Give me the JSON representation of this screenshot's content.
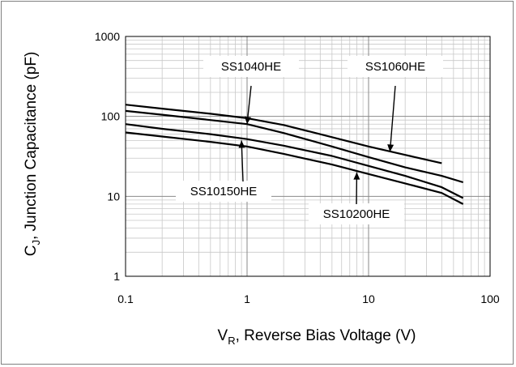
{
  "chart_data": {
    "type": "line",
    "xlabel": {
      "main": "V",
      "sub": "R",
      "rest": ", Reverse Bias Voltage (V)"
    },
    "ylabel": {
      "main": "C",
      "sub": "J",
      "rest": ", Junction Capacitance (pF)"
    },
    "x_scale": "log",
    "y_scale": "log",
    "xlim": [
      0.1,
      100
    ],
    "ylim": [
      1,
      1000
    ],
    "x_ticks": [
      "0.1",
      "1",
      "10",
      "100"
    ],
    "y_ticks": [
      "1",
      "10",
      "100",
      "1000"
    ],
    "grid": true,
    "series": [
      {
        "name": "SS1060HE",
        "points": [
          [
            0.1,
            140
          ],
          [
            0.2,
            125
          ],
          [
            0.5,
            108
          ],
          [
            1,
            95
          ],
          [
            2,
            78
          ],
          [
            5,
            55
          ],
          [
            10,
            42
          ],
          [
            20,
            33
          ],
          [
            40,
            26
          ]
        ]
      },
      {
        "name": "SS1040HE",
        "points": [
          [
            0.1,
            117
          ],
          [
            0.2,
            105
          ],
          [
            0.5,
            90
          ],
          [
            1,
            80
          ],
          [
            2,
            62
          ],
          [
            5,
            42
          ],
          [
            10,
            31
          ],
          [
            20,
            23
          ],
          [
            40,
            18
          ],
          [
            60,
            15
          ]
        ]
      },
      {
        "name": "SS10150HE",
        "points": [
          [
            0.1,
            80
          ],
          [
            0.2,
            70
          ],
          [
            0.5,
            60
          ],
          [
            1,
            52
          ],
          [
            2,
            43
          ],
          [
            5,
            32
          ],
          [
            10,
            24
          ],
          [
            20,
            18
          ],
          [
            40,
            13
          ],
          [
            60,
            9.5
          ]
        ]
      },
      {
        "name": "SS10200HE",
        "points": [
          [
            0.1,
            63
          ],
          [
            0.2,
            56
          ],
          [
            0.5,
            48
          ],
          [
            1,
            42
          ],
          [
            2,
            34
          ],
          [
            5,
            25
          ],
          [
            10,
            19
          ],
          [
            20,
            14.5
          ],
          [
            40,
            11
          ],
          [
            60,
            8
          ]
        ]
      }
    ],
    "annotations": [
      {
        "label": "SS1040HE",
        "arrow_to": [
          1,
          80
        ]
      },
      {
        "label": "SS1060HE",
        "arrow_to": [
          15,
          36
        ]
      },
      {
        "label": "SS10150HE",
        "arrow_to": [
          0.9,
          50
        ]
      },
      {
        "label": "SS10200HE",
        "arrow_to": [
          8,
          20
        ]
      }
    ]
  }
}
